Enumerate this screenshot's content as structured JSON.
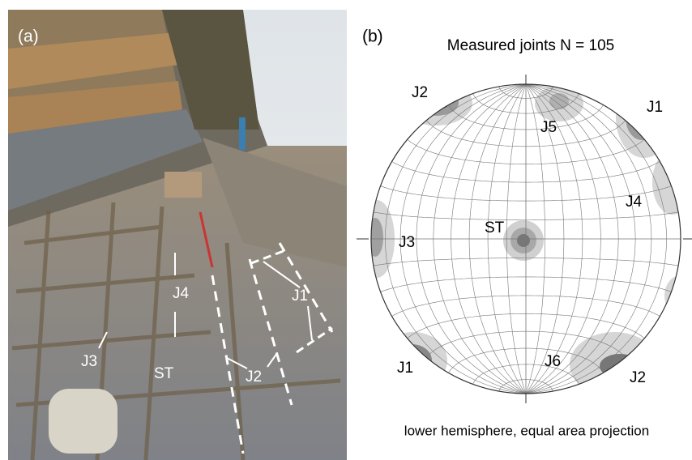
{
  "panel_a": {
    "label": "(a)",
    "annotations": [
      "J4",
      "J1",
      "J3",
      "J2",
      "ST"
    ]
  },
  "panel_b": {
    "label": "(b)",
    "title": "Measured joints N = 105",
    "annotations": [
      "J2",
      "J1",
      "J5",
      "J4",
      "ST",
      "J3",
      "J1",
      "J6",
      "J2"
    ],
    "caption": "lower hemisphere, equal area projection"
  }
}
